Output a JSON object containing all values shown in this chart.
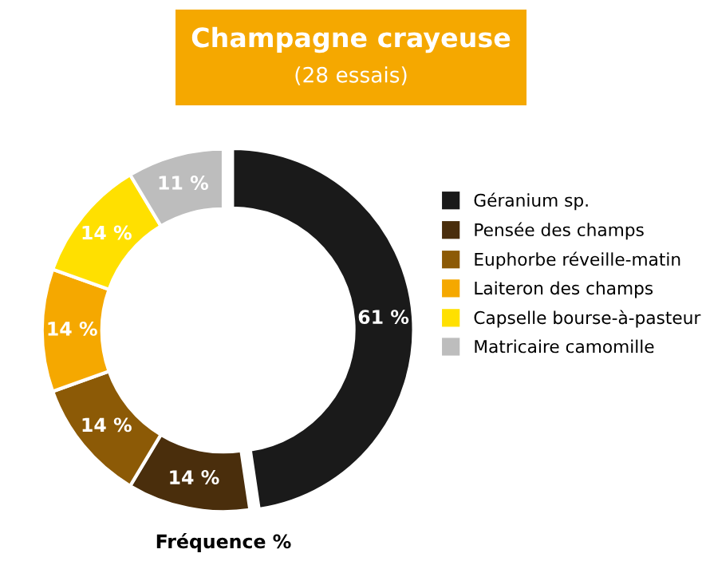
{
  "chart_data": {
    "type": "donut",
    "title": "Champagne crayeuse",
    "subtitle": "(28 essais)",
    "categories": [
      "Géranium sp.",
      "Pensée des champs",
      "Euphorbe réveille-matin",
      "Laiteron des champs",
      "Capselle bourse-à-pasteur",
      "Matricaire camomille"
    ],
    "values": [
      61,
      14,
      14,
      14,
      14,
      11
    ],
    "value_labels": [
      "61 %",
      "14 %",
      "14 %",
      "14 %",
      "14 %",
      "11 %"
    ],
    "colors": [
      "#1a1a1a",
      "#4a2e0c",
      "#8c5a06",
      "#f5a800",
      "#ffe000",
      "#bdbdbd"
    ],
    "legend": "right",
    "annotations": [
      "Fréquence %"
    ]
  }
}
